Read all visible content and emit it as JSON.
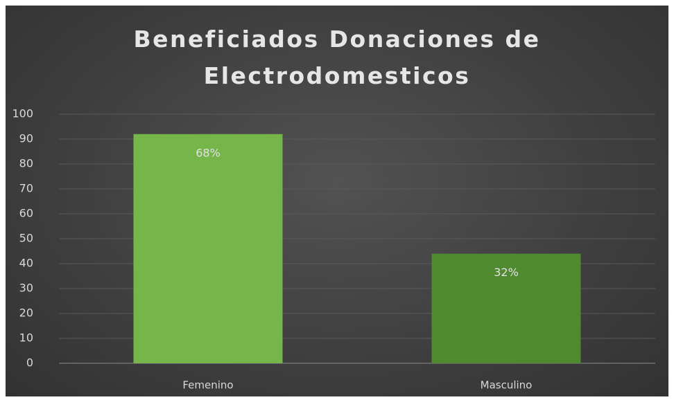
{
  "chart_data": {
    "type": "bar",
    "title": "Beneficiados Donaciones de Electrodomesticos",
    "categories": [
      "Femenino",
      "Masculino"
    ],
    "values": [
      92,
      44
    ],
    "colors": [
      "#75b549",
      "#4f8a30"
    ],
    "annotations": [
      "68%",
      "32%"
    ],
    "ylim": [
      0,
      100
    ],
    "yticks": [
      0,
      10,
      20,
      30,
      40,
      50,
      60,
      70,
      80,
      90,
      100
    ],
    "grid": true
  }
}
